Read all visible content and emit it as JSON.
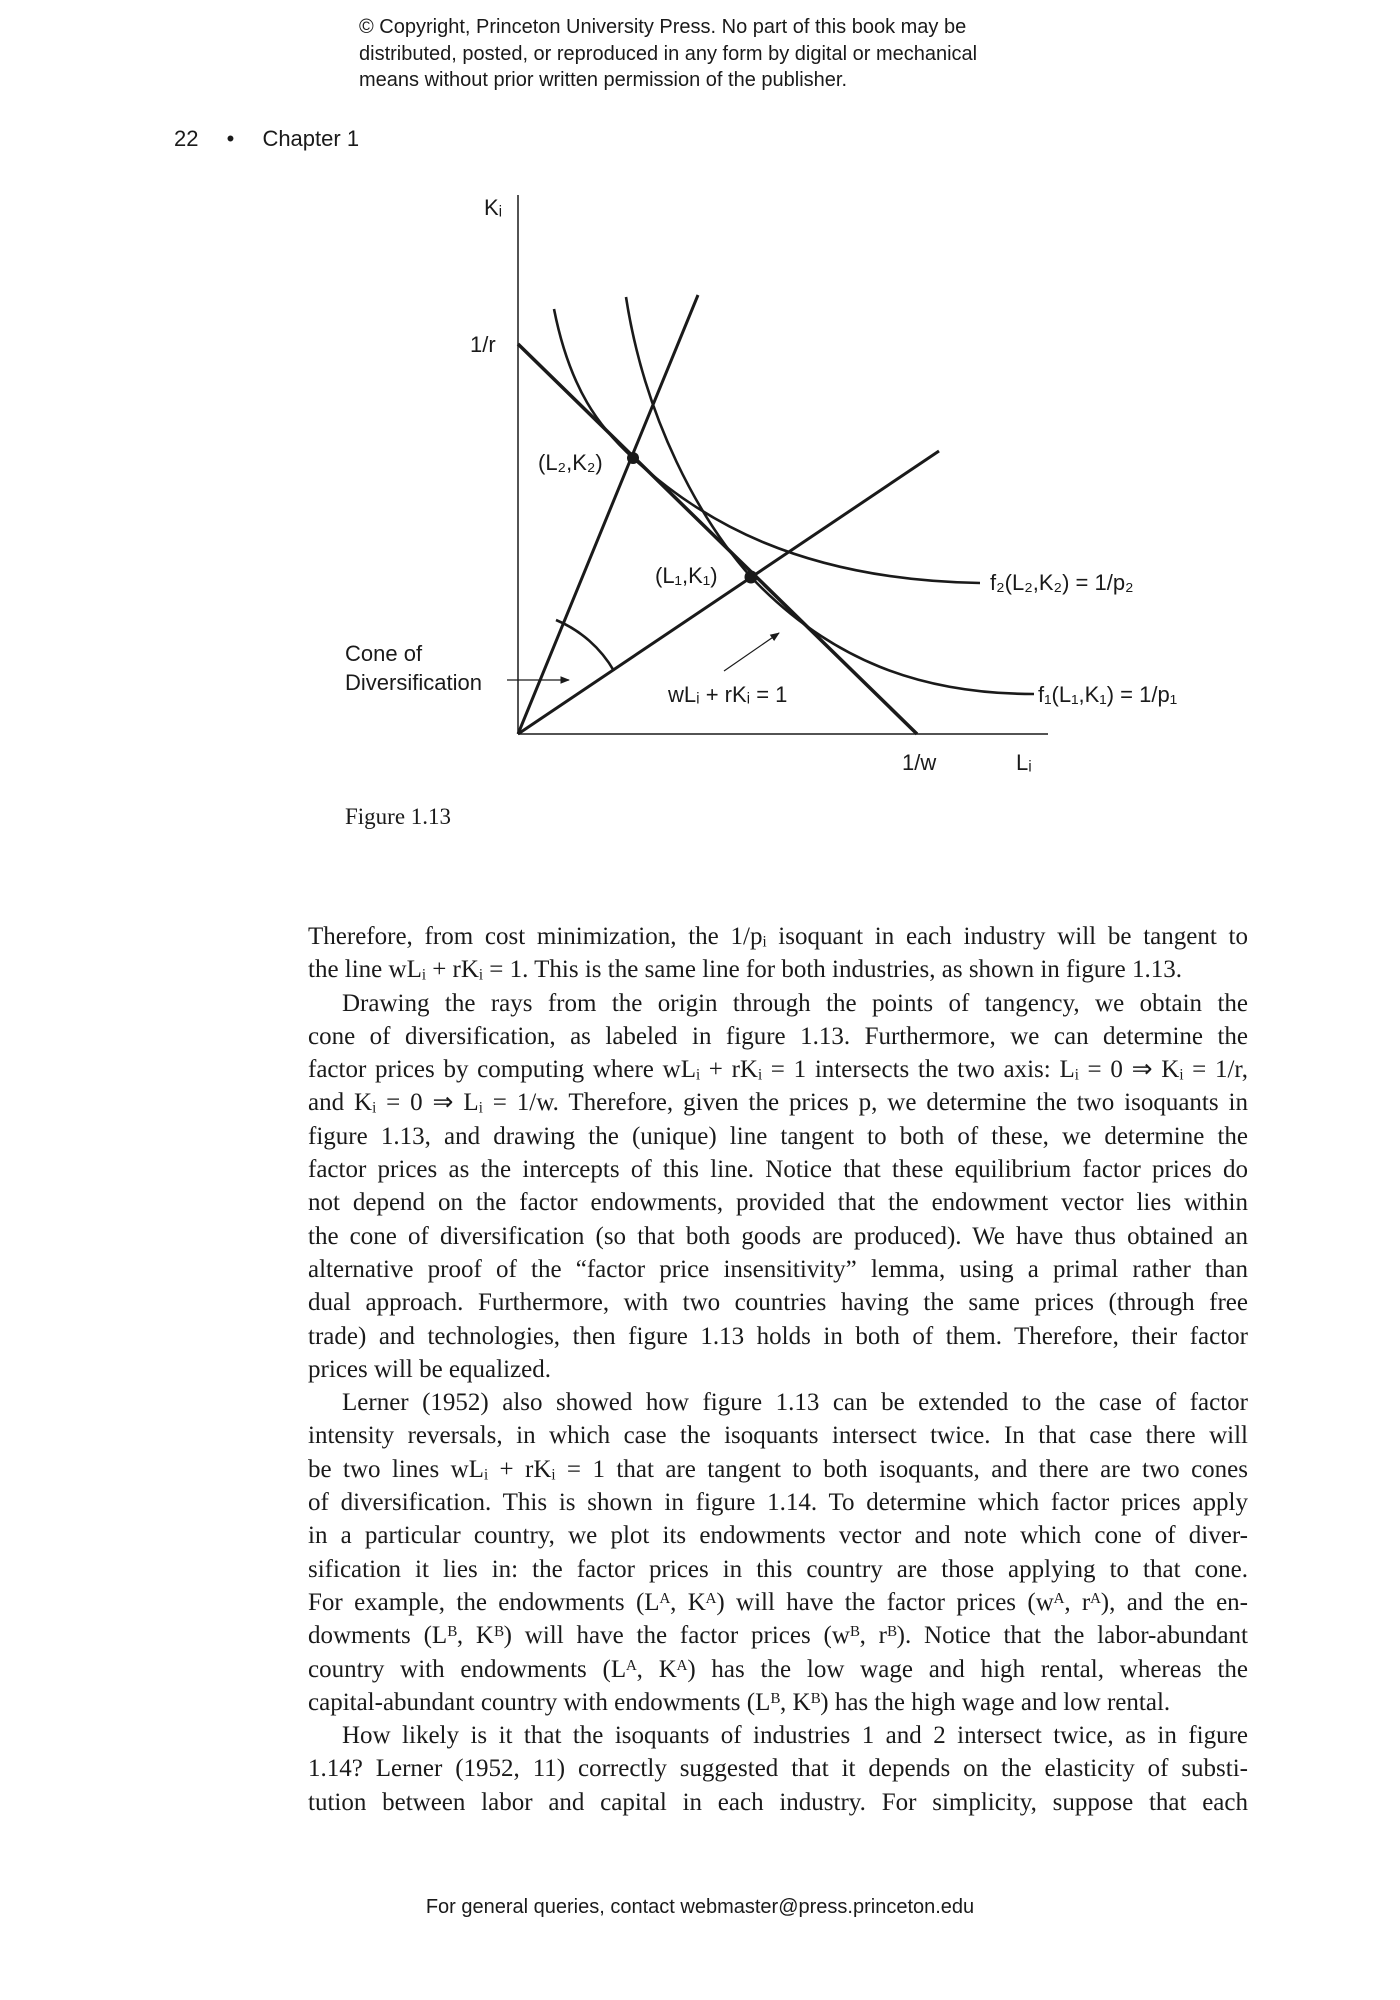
{
  "copyright": [
    "© Copyright, Princeton University Press. No part of this book may be",
    "distributed, posted, or reproduced in any form by digital or mechanical",
    "means without prior written permission of the publisher."
  ],
  "running_head": {
    "page_number": "22",
    "separator": "•",
    "chapter": "Chapter 1"
  },
  "figure": {
    "y_axis_label": "Kᵢ",
    "x_axis_label": "Lᵢ",
    "y_intercept_label": "1/r",
    "x_intercept_label": "1/w",
    "point_2_label": "(L₂,K₂)",
    "point_1_label": "(L₁,K₁)",
    "isoquant_2_label": "f₂(L₂,K₂) = 1/p₂",
    "isoquant_1_label": "f₁(L₁,K₁) = 1/p₁",
    "cone_label_line1": "Cone of",
    "cone_label_line2": "Diversification",
    "budget_line_label": "wLᵢ + rKᵢ = 1",
    "caption": "Figure 1.13"
  },
  "body_lines": [
    {
      "text": "Therefore, from cost minimization, the 1/pᵢ isoquant in each industry will be tangent to",
      "type": "first"
    },
    {
      "text": "the line wLᵢ + rKᵢ = 1. This is the same line for both industries, as shown in figure 1.13.",
      "type": "last"
    },
    {
      "text": "Drawing the rays from the origin through the points of tangency, we obtain the",
      "type": "indent"
    },
    {
      "text": "cone of diversification, as labeled in figure 1.13. Furthermore, we can determine the",
      "type": ""
    },
    {
      "text": "factor prices by computing where wLᵢ + rKᵢ = 1 intersects the two axis: Lᵢ = 0 ⇒ Kᵢ = 1/r,",
      "type": ""
    },
    {
      "text": "and Kᵢ = 0 ⇒ Lᵢ = 1/w. Therefore, given the prices p, we determine the two isoquants in",
      "type": ""
    },
    {
      "text": "figure 1.13, and drawing the (unique) line tangent to both of these, we determine the",
      "type": ""
    },
    {
      "text": "factor prices as the intercepts of this line. Notice that these equilibrium factor prices do",
      "type": ""
    },
    {
      "text": "not depend on the factor endowments, provided that the endowment vector lies within",
      "type": ""
    },
    {
      "text": "the cone of diversification (so that both goods are produced). We have thus obtained an",
      "type": ""
    },
    {
      "text": "alternative proof of the “factor price insensitivity” lemma, using a primal rather than",
      "type": ""
    },
    {
      "text": "dual approach. Furthermore, with two countries having the same prices (through free",
      "type": ""
    },
    {
      "text": "trade) and technologies, then figure 1.13 holds in both of them. Therefore, their factor",
      "type": ""
    },
    {
      "text": "prices will be equalized.",
      "type": "last"
    },
    {
      "text": "Lerner (1952) also showed how figure 1.13 can be extended to the case of factor",
      "type": "indent"
    },
    {
      "text": "intensity reversals, in which case the isoquants intersect twice. In that case there will",
      "type": ""
    },
    {
      "text": "be two lines wLᵢ + rKᵢ = 1 that are tangent to both isoquants, and there are two cones",
      "type": ""
    },
    {
      "text": "of diversification. This is shown in figure 1.14. To determine which factor prices apply",
      "type": ""
    },
    {
      "text": "in a particular country, we plot its endowments vector and note which cone of diver-",
      "type": ""
    },
    {
      "text": "sification it lies in: the factor prices in this country are those applying to that cone.",
      "type": ""
    },
    {
      "text": "For example, the endowments (Lᴬ, Kᴬ) will have the factor prices (wᴬ, rᴬ), and the en-",
      "type": ""
    },
    {
      "text": "dowments (Lᴮ, Kᴮ) will have the factor prices (wᴮ, rᴮ). Notice that the labor-abundant",
      "type": ""
    },
    {
      "text": "country with endowments (Lᴬ, Kᴬ) has the low wage and high rental, whereas the",
      "type": ""
    },
    {
      "text": "capital-abundant country with endowments (Lᴮ, Kᴮ) has the high wage and low rental.",
      "type": "last"
    },
    {
      "text": "How likely is it that the isoquants of industries 1 and 2 intersect twice, as in figure",
      "type": "indent"
    },
    {
      "text": "1.14? Lerner (1952, 11) correctly suggested that it depends on the elasticity of substi-",
      "type": ""
    },
    {
      "text": "tution between labor and capital in each industry. For simplicity, suppose that each",
      "type": ""
    }
  ],
  "footer": "For general queries, contact webmaster@press.princeton.edu"
}
